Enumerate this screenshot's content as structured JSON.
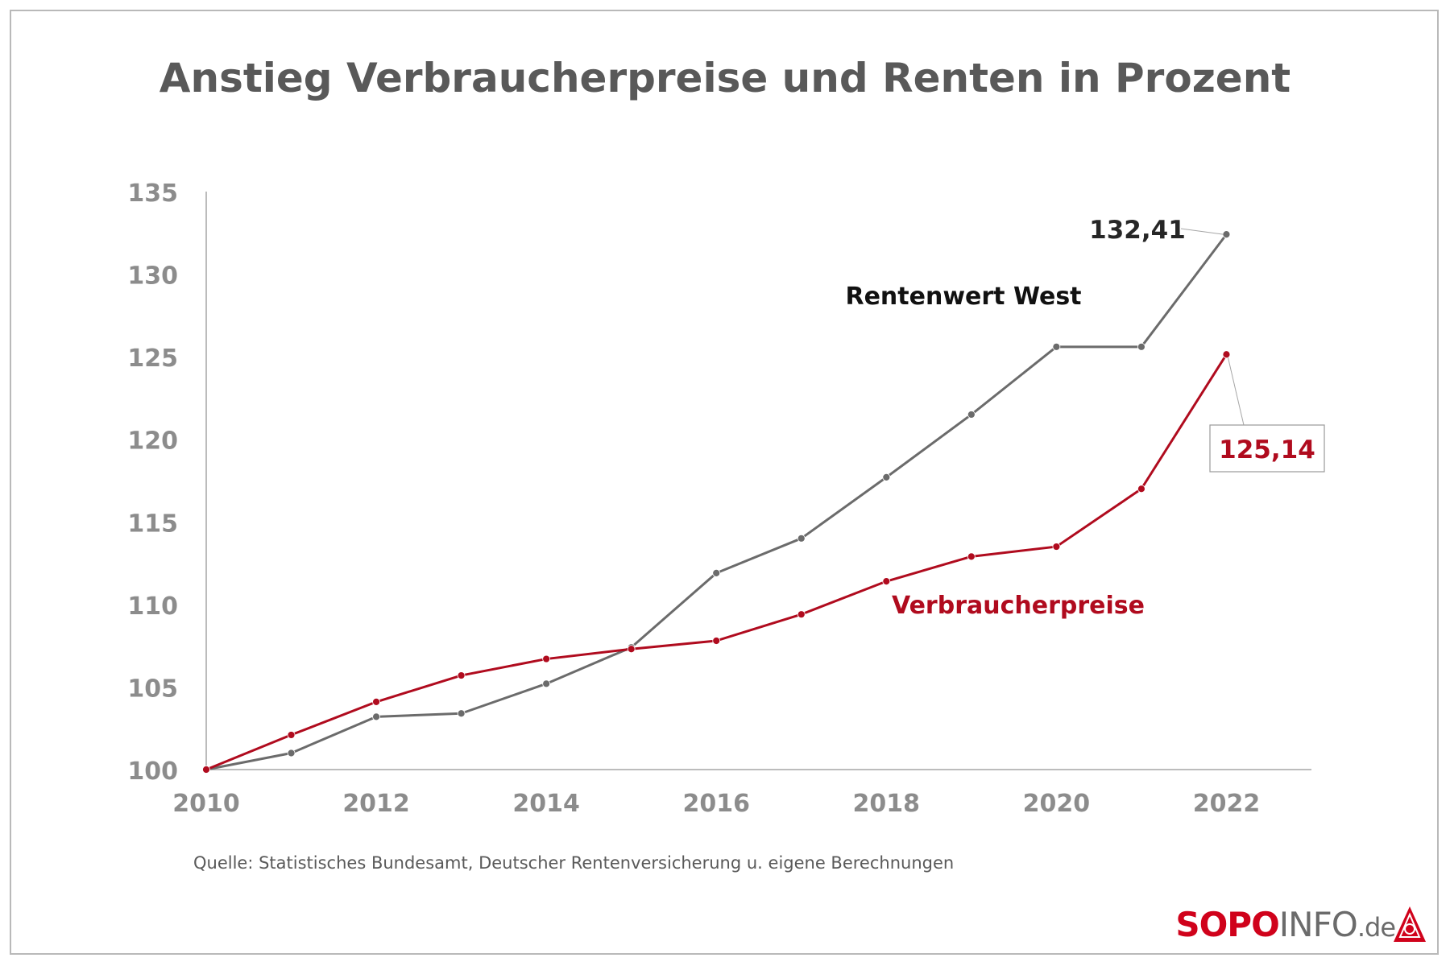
{
  "title": "Anstieg Verbraucherpreise und Renten in Prozent",
  "source": "Quelle: Statistisches Bundesamt, Deutscher Rentenversicherung u. eigene Berechnungen",
  "logo": {
    "sopo": "SOPO",
    "info": "INFO",
    "de": ".de"
  },
  "colors": {
    "rentenwert": "#6b6b6b",
    "verbraucherpreise": "#b00b1e",
    "axis_text": "#8c8c8c",
    "title": "#595959"
  },
  "chart_data": {
    "type": "line",
    "x": [
      2010,
      2011,
      2012,
      2013,
      2014,
      2015,
      2016,
      2017,
      2018,
      2019,
      2020,
      2021,
      2022
    ],
    "xticks": [
      "2010",
      "2012",
      "2014",
      "2016",
      "2018",
      "2020",
      "2022"
    ],
    "yticks": [
      "100",
      "105",
      "110",
      "115",
      "120",
      "125",
      "130",
      "135"
    ],
    "xlim": [
      2010,
      2023
    ],
    "ylim": [
      100,
      135
    ],
    "grid": false,
    "series": [
      {
        "name": "Rentenwert West",
        "color": "#6b6b6b",
        "values": [
          100,
          101.0,
          103.2,
          103.4,
          105.2,
          107.4,
          111.9,
          114.0,
          117.7,
          121.5,
          125.6,
          125.6,
          132.41
        ],
        "end_label": "132,41"
      },
      {
        "name": "Verbraucherpreise",
        "color": "#b00b1e",
        "values": [
          100,
          102.1,
          104.1,
          105.7,
          106.7,
          107.3,
          107.8,
          109.4,
          111.4,
          112.9,
          113.5,
          117.0,
          125.14
        ],
        "end_label": "125,14"
      }
    ]
  }
}
